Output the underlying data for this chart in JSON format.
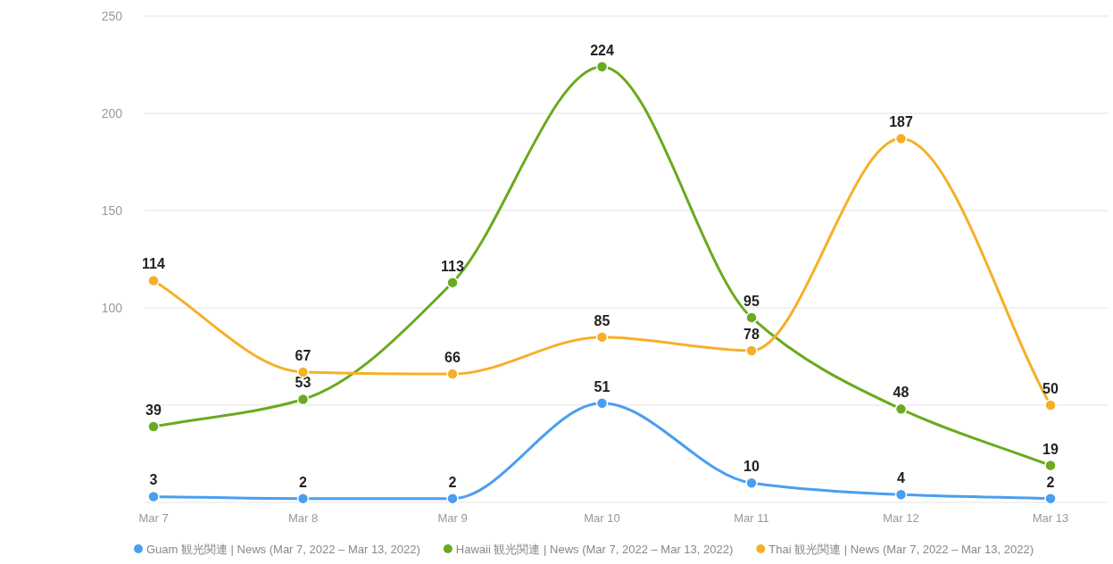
{
  "chart_data": {
    "type": "line",
    "categories": [
      "Mar 7",
      "Mar 8",
      "Mar 9",
      "Mar 10",
      "Mar 11",
      "Mar 12",
      "Mar 13"
    ],
    "series": [
      {
        "name": "Guam 観光関連 | News (Mar 7, 2022 – Mar 13, 2022)",
        "color": "#4a9ef0",
        "values": [
          3,
          2,
          2,
          51,
          10,
          4,
          2
        ]
      },
      {
        "name": "Hawaii 観光関連 | News (Mar 7, 2022 – Mar 13, 2022)",
        "color": "#6aaa1e",
        "values": [
          39,
          53,
          113,
          224,
          95,
          48,
          19
        ]
      },
      {
        "name": "Thai 観光関連 | News (Mar 7, 2022 – Mar 13, 2022)",
        "color": "#f5b027",
        "values": [
          114,
          67,
          66,
          85,
          78,
          187,
          50
        ]
      }
    ],
    "ylim": [
      0,
      250
    ],
    "yticks": [
      {
        "value": 0,
        "label": null
      },
      {
        "value": 50,
        "label": null
      },
      100,
      150,
      200,
      250
    ],
    "grid": "y",
    "legend": "bottom",
    "data_labels": true,
    "marker": "circle"
  }
}
